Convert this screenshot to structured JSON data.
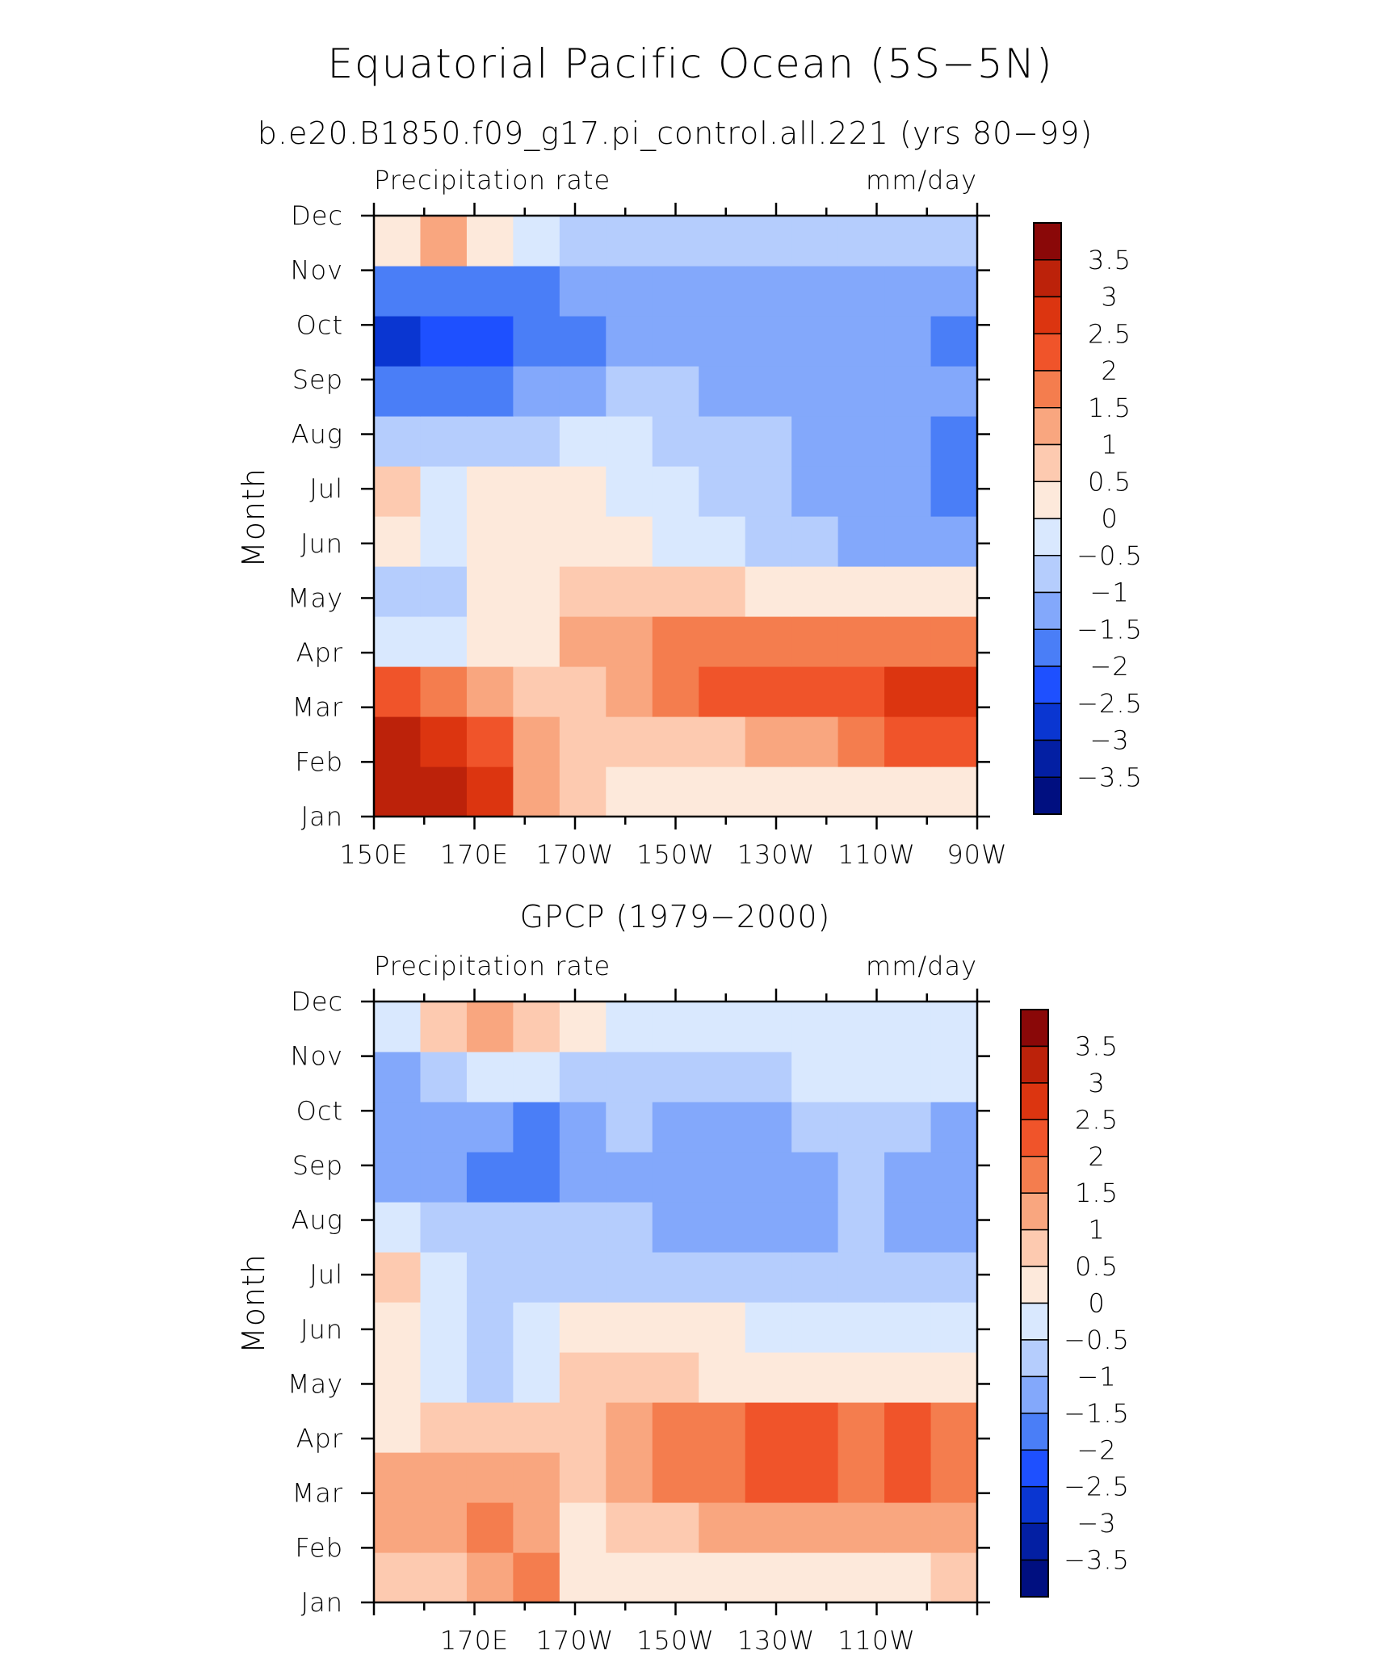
{
  "figure": {
    "title": "Equatorial Pacific Ocean (5S−5N)"
  },
  "chart_data": [
    {
      "type": "heatmap",
      "title": "b.e20.B1850.f09_g17.pi_control.all.221 (yrs 80−99)",
      "left_label": "Precipitation rate",
      "right_label": "mm/day",
      "ylabel": "Month",
      "xticks": [
        "150E",
        "170E",
        "170W",
        "150W",
        "130W",
        "110W",
        "90W"
      ],
      "yticks": [
        "Jan",
        "Feb",
        "Mar",
        "Apr",
        "May",
        "Jun",
        "Jul",
        "Aug",
        "Sep",
        "Oct",
        "Nov",
        "Dec"
      ],
      "x_longitudes": [
        150,
        160,
        170,
        180,
        190,
        200,
        210,
        220,
        230,
        240,
        250,
        260,
        270
      ],
      "y_months": [
        1,
        2,
        3,
        4,
        5,
        6,
        7,
        8,
        9,
        10,
        11,
        12
      ],
      "values": [
        [
          3.2,
          3.4,
          2.6,
          1.2,
          0.6,
          0.4,
          0.1,
          0.2,
          0.1,
          0.2,
          0.3,
          0.2,
          0.3
        ],
        [
          3.4,
          2.8,
          2.0,
          1.4,
          0.8,
          0.6,
          0.6,
          0.9,
          1.1,
          1.4,
          1.8,
          2.0,
          2.0
        ],
        [
          2.4,
          1.6,
          1.0,
          0.6,
          0.8,
          1.4,
          1.6,
          2.0,
          2.2,
          2.2,
          2.3,
          2.6,
          2.6
        ],
        [
          -0.4,
          -0.2,
          0.2,
          0.4,
          1.0,
          1.2,
          1.6,
          1.8,
          1.9,
          1.9,
          1.8,
          1.8,
          1.9
        ],
        [
          -1.0,
          -0.6,
          0.2,
          0.2,
          0.6,
          0.6,
          0.6,
          0.6,
          0.4,
          0.2,
          0.2,
          0.2,
          0.2
        ],
        [
          0.4,
          -0.4,
          0.2,
          0.2,
          0.4,
          0.2,
          -0.1,
          -0.4,
          -0.6,
          -0.9,
          -1.1,
          -1.2,
          -1.2
        ],
        [
          0.8,
          -0.2,
          0.1,
          0.1,
          0.2,
          -0.2,
          -0.4,
          -0.6,
          -1.0,
          -1.1,
          -1.2,
          -1.2,
          -1.6
        ],
        [
          -0.8,
          -1.0,
          -0.8,
          -0.6,
          -0.5,
          -0.5,
          -0.6,
          -0.9,
          -1.0,
          -1.2,
          -1.2,
          -1.2,
          -1.8
        ],
        [
          -2.0,
          -2.0,
          -1.8,
          -1.5,
          -1.2,
          -1.0,
          -1.0,
          -1.1,
          -1.1,
          -1.2,
          -1.2,
          -1.2,
          -1.4
        ],
        [
          -2.6,
          -2.5,
          -2.2,
          -2.0,
          -1.6,
          -1.2,
          -1.1,
          -1.1,
          -1.1,
          -1.1,
          -1.2,
          -1.2,
          -1.8
        ],
        [
          -1.8,
          -2.0,
          -1.8,
          -1.6,
          -1.3,
          -1.2,
          -1.2,
          -1.2,
          -1.2,
          -1.2,
          -1.2,
          -1.1,
          -1.1
        ],
        [
          0.2,
          1.0,
          0.2,
          -0.4,
          -0.8,
          -0.8,
          -0.8,
          -0.8,
          -0.8,
          -0.8,
          -0.8,
          -0.6,
          -0.6
        ]
      ]
    },
    {
      "type": "heatmap",
      "title": "GPCP (1979−2000)",
      "left_label": "Precipitation rate",
      "right_label": "mm/day",
      "ylabel": "Month",
      "xticks": [
        "170E",
        "170W",
        "150W",
        "130W",
        "110W"
      ],
      "yticks": [
        "Jan",
        "Feb",
        "Mar",
        "Apr",
        "May",
        "Jun",
        "Jul",
        "Aug",
        "Sep",
        "Oct",
        "Nov",
        "Dec"
      ],
      "x_longitudes": [
        150,
        160,
        170,
        180,
        190,
        200,
        210,
        220,
        230,
        240,
        250,
        260,
        270
      ],
      "y_months": [
        1,
        2,
        3,
        4,
        5,
        6,
        7,
        8,
        9,
        10,
        11,
        12
      ],
      "values": [
        [
          0.6,
          0.8,
          1.2,
          1.6,
          0.3,
          0.2,
          0.1,
          0.2,
          0.2,
          0.1,
          0.2,
          0.3,
          0.6
        ],
        [
          1.2,
          1.2,
          1.6,
          1.3,
          0.4,
          0.6,
          0.8,
          1.0,
          1.2,
          1.2,
          1.3,
          1.3,
          1.4
        ],
        [
          1.0,
          1.0,
          1.2,
          1.0,
          0.6,
          1.2,
          1.6,
          1.8,
          2.0,
          2.0,
          1.8,
          2.0,
          1.6
        ],
        [
          0.4,
          0.6,
          0.8,
          0.6,
          0.8,
          1.0,
          1.6,
          1.8,
          2.0,
          2.0,
          1.6,
          2.0,
          1.6
        ],
        [
          0.1,
          -0.2,
          -0.6,
          -0.2,
          0.6,
          0.6,
          0.6,
          0.4,
          0.2,
          0.1,
          0.1,
          0.1,
          0.0
        ],
        [
          0.4,
          -0.3,
          -0.6,
          -0.3,
          0.1,
          0.0,
          0.2,
          0.1,
          -0.2,
          -0.4,
          -0.5,
          -0.5,
          -0.4
        ],
        [
          0.6,
          -0.4,
          -0.8,
          -0.8,
          -0.6,
          -0.6,
          -0.7,
          -0.8,
          -0.9,
          -0.9,
          -0.9,
          -1.0,
          -1.0
        ],
        [
          -0.5,
          -0.8,
          -1.0,
          -1.0,
          -0.9,
          -1.0,
          -1.2,
          -1.2,
          -1.2,
          -1.1,
          -1.0,
          -1.2,
          -1.2
        ],
        [
          -1.4,
          -1.4,
          -1.8,
          -1.6,
          -1.2,
          -1.2,
          -1.4,
          -1.4,
          -1.4,
          -1.4,
          -1.0,
          -1.2,
          -1.2
        ],
        [
          -1.4,
          -1.2,
          -1.4,
          -1.6,
          -1.2,
          -0.9,
          -1.2,
          -1.2,
          -1.2,
          -1.0,
          -0.8,
          -1.0,
          -1.2
        ],
        [
          -1.2,
          -0.8,
          -0.5,
          -0.5,
          -0.6,
          -0.6,
          -0.6,
          -0.6,
          -0.6,
          -0.5,
          -0.5,
          -0.5,
          -0.4
        ],
        [
          -0.2,
          0.8,
          1.4,
          0.8,
          0.4,
          -0.1,
          -0.3,
          -0.3,
          -0.3,
          -0.3,
          -0.2,
          -0.3,
          -0.3
        ]
      ]
    }
  ],
  "colorbar": {
    "labels": [
      "3.5",
      "3",
      "2.5",
      "2",
      "1.5",
      "1",
      "0.5",
      "0",
      "−0.5",
      "−1",
      "−1.5",
      "−2",
      "−2.5",
      "−3",
      "−3.5"
    ],
    "levels": [
      -3.5,
      -3,
      -2.5,
      -2,
      -1.5,
      -1,
      -0.5,
      0,
      0.5,
      1,
      1.5,
      2,
      2.5,
      3,
      3.5
    ],
    "colors": [
      "#000f80",
      "#031fa3",
      "#0a36d1",
      "#1e50ff",
      "#4a7ef7",
      "#83a8fb",
      "#b5cdfd",
      "#d9e8fe",
      "#fde9db",
      "#fdcab0",
      "#f9a67f",
      "#f47d4e",
      "#f0542a",
      "#dc3510",
      "#bc220a",
      "#8a0808"
    ]
  }
}
